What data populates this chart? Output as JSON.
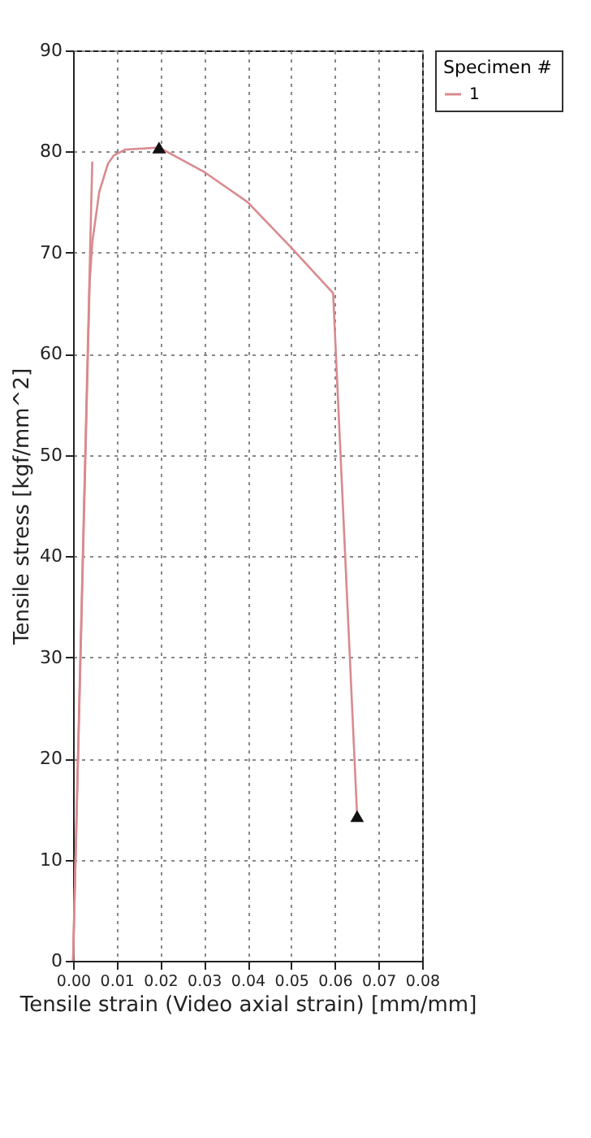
{
  "chart_data": {
    "type": "line",
    "xlabel": "Tensile strain (Video axial strain) [mm/mm]",
    "ylabel": "Tensile stress [kgf/mm^2]",
    "legend_title": "Specimen #",
    "xlim": [
      0,
      0.08
    ],
    "xticks": [
      {
        "value": 0,
        "label": "0.00"
      },
      0.01,
      0.02,
      0.03,
      0.04,
      0.05,
      0.06,
      0.07,
      {
        "value": 0.08,
        "label": "0.08"
      }
    ],
    "ylim": [
      0,
      90
    ],
    "yticks": [
      0,
      10,
      20,
      30,
      40,
      50,
      60,
      70,
      80,
      90
    ],
    "grid": true,
    "legend": "right",
    "line_style": "solid",
    "series": [
      {
        "name": "1",
        "type": "line",
        "color": "#d98a8e",
        "marker": "none",
        "x": [
          0,
          0.002,
          0.0038,
          0.0044,
          0.006,
          0.008,
          0.0093,
          0.012,
          0.0197,
          0.03,
          0.035,
          0.04,
          0.05,
          0.0596,
          0.0651
        ],
        "values": [
          0,
          35,
          67,
          71,
          76,
          78.8,
          79.6,
          80.2,
          80.4,
          78,
          76.5,
          75,
          70.5,
          66,
          14.3
        ]
      },
      {
        "type": "line",
        "color": "#d98a8e",
        "marker": "none",
        "x": [
          0,
          0.0044
        ],
        "values": [
          0,
          79
        ]
      },
      {
        "type": "scatter",
        "color": "#111111",
        "marker": "triangle",
        "x": [
          0.0197,
          0.0651
        ],
        "values": [
          80.4,
          14.3
        ]
      }
    ]
  }
}
